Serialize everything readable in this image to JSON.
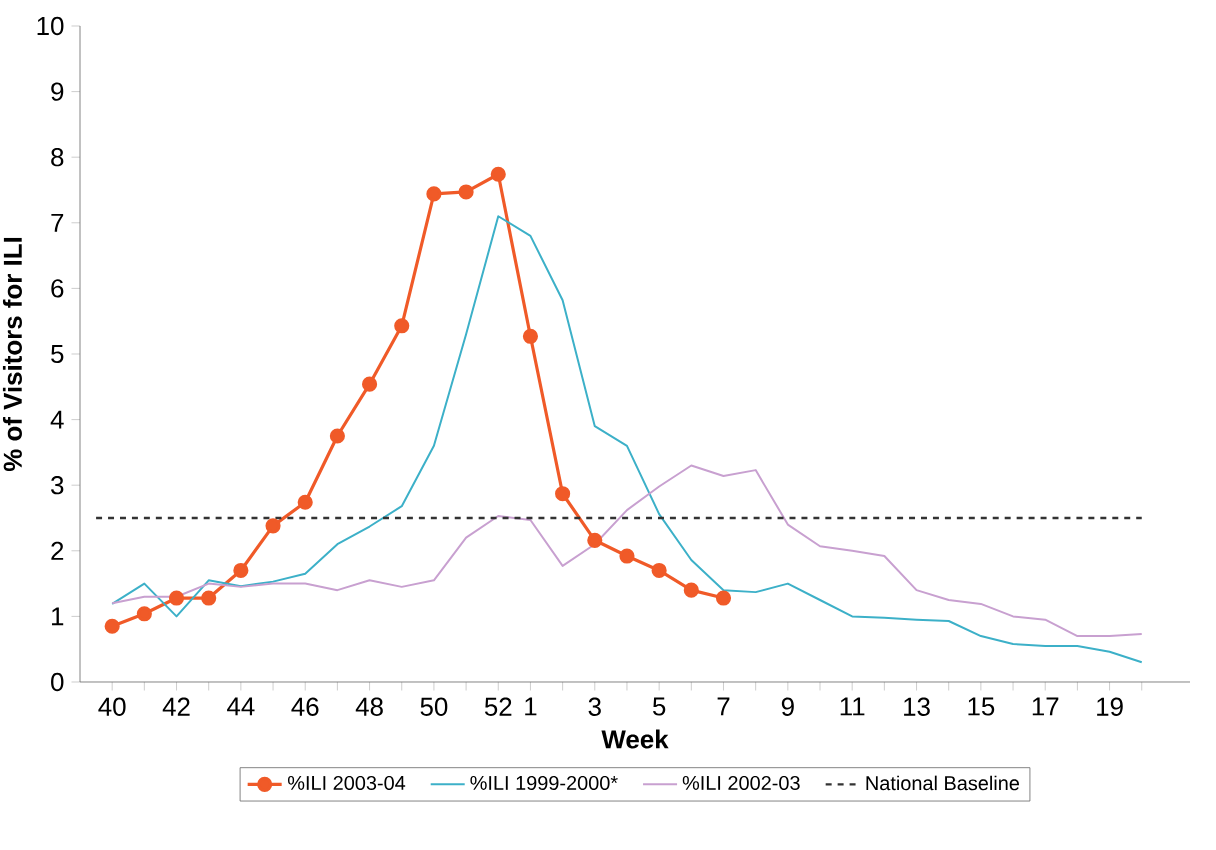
{
  "chart_data": {
    "type": "line",
    "xlabel": "Week",
    "ylabel": "% of Visitors for ILI",
    "categories": [
      "40",
      null,
      "42",
      null,
      "44",
      null,
      "46",
      null,
      "48",
      null,
      "50",
      null,
      "52",
      "1",
      null,
      "3",
      null,
      "5",
      null,
      "7",
      null,
      "9",
      null,
      "11",
      null,
      "13",
      null,
      "15",
      null,
      "17",
      null,
      "19",
      null
    ],
    "ylim": [
      0,
      10
    ],
    "yticks": [
      0,
      1,
      2,
      3,
      4,
      5,
      6,
      7,
      8,
      9,
      10
    ],
    "grid": false,
    "legend": "bottom",
    "series": [
      {
        "name": "%ILI 2003-04",
        "color": "#f05a28",
        "marker": "circle",
        "values": [
          0.85,
          1.04,
          1.28,
          1.28,
          1.7,
          2.38,
          2.74,
          3.75,
          4.54,
          5.43,
          7.44,
          7.47,
          7.74,
          5.27,
          2.87,
          2.16,
          1.92,
          1.7,
          1.4,
          1.28,
          null,
          null,
          null,
          null,
          null,
          null,
          null,
          null,
          null,
          null,
          null,
          null,
          null
        ]
      },
      {
        "name": "%ILI 1999-2000*",
        "color": "#3cb0c8",
        "values": [
          1.19,
          1.5,
          1.0,
          1.55,
          1.46,
          1.53,
          1.65,
          2.1,
          2.37,
          2.68,
          3.6,
          5.3,
          7.1,
          6.8,
          5.82,
          3.9,
          3.6,
          2.56,
          1.86,
          1.4,
          1.37,
          1.5,
          1.25,
          1.0,
          0.98,
          0.95,
          0.93,
          0.7,
          0.58,
          0.55,
          0.55,
          0.46,
          0.3
        ]
      },
      {
        "name": "%ILI 2002-03",
        "color": "#c8a0d0",
        "values": [
          1.2,
          1.3,
          1.3,
          1.5,
          1.45,
          1.5,
          1.5,
          1.4,
          1.55,
          1.45,
          1.55,
          2.2,
          2.53,
          2.47,
          1.77,
          2.1,
          2.62,
          2.98,
          3.3,
          3.14,
          3.23,
          2.4,
          2.07,
          2.0,
          1.92,
          1.4,
          1.25,
          1.19,
          1.0,
          0.95,
          0.7,
          0.7,
          0.73
        ]
      }
    ],
    "ref_lines": [
      {
        "axis": "y",
        "value": 2.5,
        "label": "National Baseline",
        "color": "#333333",
        "line_style": "dashed"
      }
    ]
  }
}
